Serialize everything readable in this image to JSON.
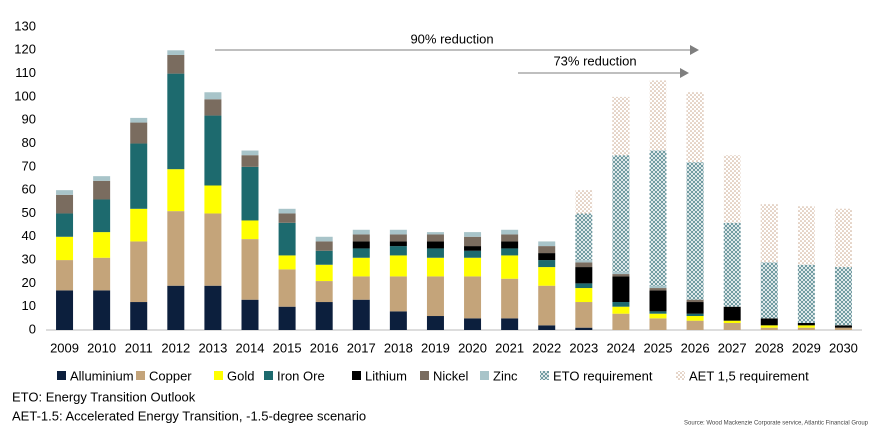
{
  "chart_data": {
    "type": "stacked-bar",
    "categories": [
      "2009",
      "2010",
      "2011",
      "2012",
      "2013",
      "2014",
      "2015",
      "2016",
      "2017",
      "2018",
      "2019",
      "2020",
      "2021",
      "2022",
      "2023",
      "2024",
      "2025",
      "2026",
      "2027",
      "2028",
      "2029",
      "2030"
    ],
    "series": [
      {
        "name": "Alluminium",
        "color": "#0c1f3d",
        "values": [
          17,
          17,
          12,
          19,
          19,
          13,
          10,
          12,
          13,
          8,
          6,
          5,
          5,
          2,
          1,
          0,
          0,
          0,
          0,
          0,
          0,
          0
        ]
      },
      {
        "name": "Copper",
        "color": "#c4a47a",
        "values": [
          13,
          14,
          26,
          32,
          31,
          26,
          16,
          9,
          10,
          15,
          17,
          18,
          17,
          17,
          11,
          7,
          5,
          4,
          3,
          1,
          1,
          1
        ]
      },
      {
        "name": "Gold",
        "color": "#ffff00",
        "values": [
          10,
          11,
          14,
          18,
          12,
          8,
          6,
          7,
          8,
          9,
          8,
          8,
          10,
          8,
          6,
          3,
          2,
          2,
          1,
          1,
          1,
          0
        ]
      },
      {
        "name": "Iron Ore",
        "color": "#1d6a6e",
        "values": [
          10,
          14,
          28,
          41,
          30,
          23,
          14,
          6,
          4,
          4,
          4,
          3,
          3,
          3,
          2,
          2,
          1,
          1,
          0,
          0,
          0,
          0
        ]
      },
      {
        "name": "Lithium",
        "color": "#000000",
        "values": [
          0,
          0,
          0,
          0,
          0,
          0,
          0,
          0,
          3,
          2,
          3,
          2,
          3,
          3,
          7,
          11,
          9,
          5,
          6,
          3,
          1,
          1
        ]
      },
      {
        "name": "Nickel",
        "color": "#7a6c5f",
        "values": [
          8,
          8,
          9,
          8,
          7,
          5,
          4,
          4,
          3,
          3,
          3,
          4,
          3,
          3,
          2,
          1,
          1,
          1,
          0,
          0,
          0,
          0
        ]
      },
      {
        "name": "Zinc",
        "color": "#a8c4c9",
        "values": [
          2,
          2,
          2,
          2,
          3,
          2,
          2,
          2,
          2,
          2,
          1,
          2,
          2,
          2,
          1,
          1,
          1,
          0,
          0,
          0,
          0,
          0
        ]
      },
      {
        "name": "ETO requirement",
        "color": "#5b8c93",
        "hatch": "cross",
        "values": [
          0,
          0,
          0,
          0,
          0,
          0,
          0,
          0,
          0,
          0,
          0,
          0,
          0,
          0,
          20,
          50,
          58,
          59,
          36,
          24,
          25,
          25
        ]
      },
      {
        "name": "AET 1,5 requirement",
        "color": "#c9a58a",
        "hatch": "dots",
        "values": [
          0,
          0,
          0,
          0,
          0,
          0,
          0,
          0,
          0,
          0,
          0,
          0,
          0,
          0,
          10,
          25,
          30,
          30,
          29,
          25,
          25,
          25
        ]
      }
    ],
    "ylim": [
      0,
      130
    ],
    "yticks": [
      0,
      10,
      20,
      30,
      40,
      50,
      60,
      70,
      80,
      90,
      100,
      110,
      120,
      130
    ],
    "annotations": [
      "90% reduction",
      "73% reduction"
    ],
    "footnotes": [
      "ETO: Energy Transition Outlook",
      "AET-1.5: Accelerated Energy Transition, -1.5-degree scenario"
    ],
    "source": "Source: Wood Mackenzie Corporate service, Atlantic Financial Group"
  }
}
